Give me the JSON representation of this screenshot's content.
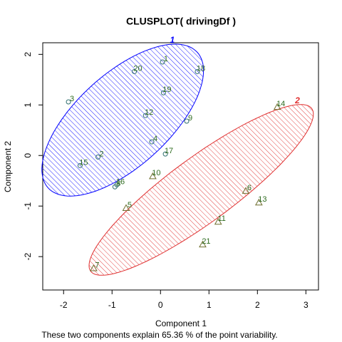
{
  "chart_data": {
    "type": "scatter",
    "title": "CLUSPLOT( drivingDf )",
    "x_label": "Component 1",
    "y_label": "Component 2",
    "subtitle": "These two components explain 65.36 % of the point variability.",
    "xlim": [
      -2.43,
      3.26
    ],
    "ylim": [
      -2.66,
      2.23
    ],
    "xticks": [
      -2,
      -1,
      0,
      1,
      2,
      3
    ],
    "yticks": [
      -2,
      -1,
      0,
      1,
      2
    ],
    "series": [
      {
        "name": "1",
        "color": "#0000ff",
        "marker": "circle",
        "marker_color": "#2f6f6f",
        "label_color": "#2e6b1f",
        "labels": [
          "1",
          "20",
          "18",
          "3",
          "19",
          "12",
          "9",
          "4",
          "17",
          "2",
          "15",
          "8",
          "16"
        ],
        "x": [
          0.04,
          -0.54,
          0.76,
          -1.9,
          0.06,
          -0.31,
          0.54,
          -0.18,
          0.1,
          -1.29,
          -1.66,
          -0.94,
          -0.9
        ],
        "y": [
          1.85,
          1.66,
          1.66,
          1.06,
          1.24,
          0.79,
          0.68,
          0.27,
          0.03,
          -0.03,
          -0.2,
          -0.62,
          -0.58
        ],
        "ellipse": {
          "center": [
            -0.78,
            0.7
          ],
          "a": [
            1.54,
            1.34
          ],
          "b": [
            0.64,
            -0.68
          ]
        }
      },
      {
        "name": "2",
        "color": "#e03030",
        "marker": "triangle",
        "marker_color": "#6f6f2f",
        "label_color": "#2e6b1f",
        "labels": [
          "14",
          "10",
          "5",
          "6",
          "13",
          "11",
          "21",
          "7"
        ],
        "x": [
          2.41,
          -0.16,
          -0.71,
          1.76,
          2.03,
          1.19,
          0.87,
          -1.38
        ],
        "y": [
          0.96,
          -0.41,
          -1.04,
          -0.7,
          -0.93,
          -1.31,
          -1.76,
          -2.23
        ],
        "ellipse": {
          "center": [
            0.84,
            -0.68
          ],
          "a": [
            2.28,
            1.61
          ],
          "b": [
            0.4,
            -0.51
          ]
        }
      }
    ]
  }
}
